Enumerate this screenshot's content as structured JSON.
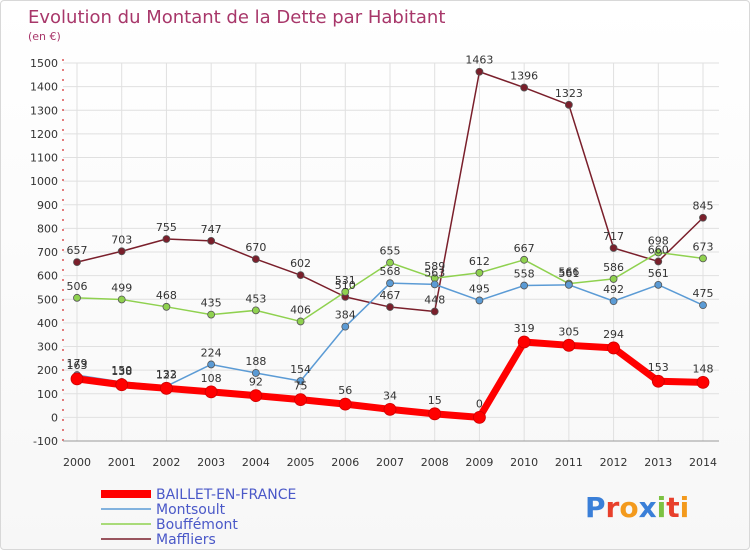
{
  "chart_data": {
    "type": "line",
    "title": "Evolution du Montant de la Dette par Habitant",
    "subtitle": "(en €)",
    "categories": [
      "2000",
      "2001",
      "2002",
      "2003",
      "2004",
      "2005",
      "2006",
      "2007",
      "2008",
      "2009",
      "2010",
      "2011",
      "2012",
      "2013",
      "2014"
    ],
    "ylim": [
      -100,
      1500
    ],
    "yticks": [
      -100,
      0,
      100,
      200,
      300,
      400,
      500,
      600,
      700,
      800,
      900,
      1000,
      1100,
      1200,
      1300,
      1400,
      1500
    ],
    "grid": true,
    "legend_position": "bottom-left",
    "series": [
      {
        "name": "BAILLET-EN-FRANCE",
        "color": "#ff0000",
        "values": [
          163,
          138,
          123,
          108,
          92,
          75,
          56,
          34,
          15,
          0,
          319,
          305,
          294,
          153,
          148
        ]
      },
      {
        "name": "Montsoult",
        "color": "#5b9bd5",
        "values": [
          179,
          150,
          132,
          224,
          188,
          154,
          384,
          568,
          563,
          495,
          558,
          561,
          492,
          561,
          475
        ]
      },
      {
        "name": "Bouffémont",
        "color": "#8fd14f",
        "values": [
          506,
          499,
          468,
          435,
          453,
          406,
          531,
          655,
          589,
          612,
          667,
          566,
          586,
          698,
          673
        ]
      },
      {
        "name": "Maffliers",
        "color": "#7a1f2b",
        "values": [
          657,
          703,
          755,
          747,
          670,
          602,
          510,
          467,
          448,
          1463,
          1396,
          1323,
          717,
          660,
          845
        ]
      }
    ]
  },
  "logo": {
    "text": "Proxiti"
  }
}
